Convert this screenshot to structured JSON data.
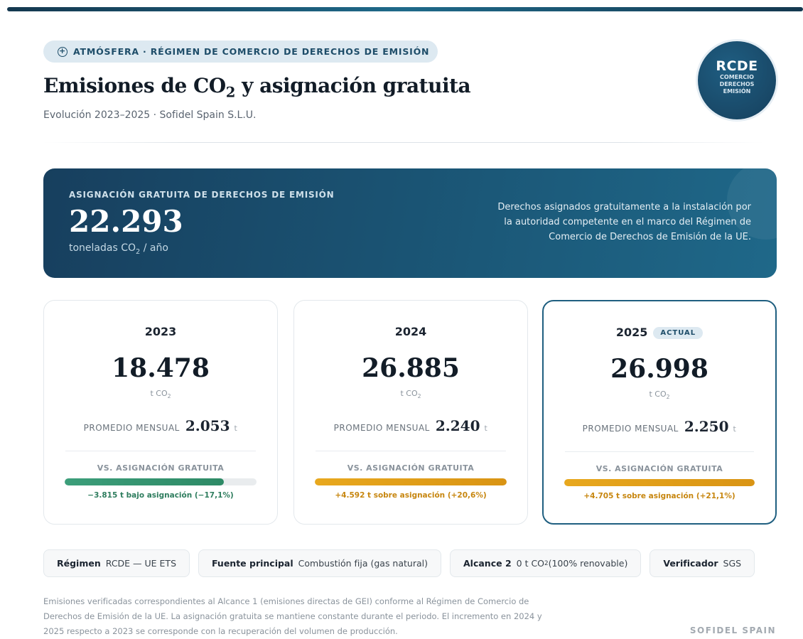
{
  "header": {
    "tag": "ATMÓSFERA · RÉGIMEN DE COMERCIO DE DERECHOS DE EMISIÓN",
    "title_pre": "Emisiones de CO",
    "title_sub": "2",
    "title_post": " y asignación gratuita",
    "subtitle": "Evolución 2023–2025 · Sofidel Spain S.L.U."
  },
  "badge": {
    "abbr": "RCDE",
    "lines": [
      "COMERCIO",
      "DERECHOS",
      "EMISIÓN"
    ]
  },
  "allocation": {
    "label": "ASIGNACIÓN GRATUITA DE DERECHOS DE EMISIÓN",
    "value": "22.293",
    "unit_pre": "toneladas CO",
    "unit_sub": "2",
    "unit_post": " / año",
    "description": "Derechos asignados gratuitamente a la instalación por la autoridad competente en el marco del Régimen de Comercio de Derechos de Emisión de la UE."
  },
  "years": [
    {
      "year": "2023",
      "value": "18.478",
      "unit_pre": "t CO",
      "unit_sub": "2",
      "avg_label": "PROMEDIO MENSUAL",
      "avg": "2.053",
      "avg_unit": "t",
      "vs_label": "VS. ASIGNACIÓN GRATUITA",
      "diff": "−3.815 t bajo asignación (−17,1%)"
    },
    {
      "year": "2024",
      "value": "26.885",
      "unit_pre": "t CO",
      "unit_sub": "2",
      "avg_label": "PROMEDIO MENSUAL",
      "avg": "2.240",
      "avg_unit": "t",
      "vs_label": "VS. ASIGNACIÓN GRATUITA",
      "diff": "+4.592 t sobre asignación (+20,6%)"
    },
    {
      "year": "2025",
      "tag": "ACTUAL",
      "value": "26.998",
      "unit_pre": "t CO",
      "unit_sub": "2",
      "avg_label": "PROMEDIO MENSUAL",
      "avg": "2.250",
      "avg_unit": "t",
      "vs_label": "VS. ASIGNACIÓN GRATUITA",
      "diff": "+4.705 t sobre asignación (+21,1%)"
    }
  ],
  "chips": [
    {
      "label": "Régimen",
      "value": "RCDE — UE ETS"
    },
    {
      "label": "Fuente principal",
      "value": "Combustión fija (gas natural)"
    },
    {
      "label": "Alcance 2",
      "value": "0 t CO",
      "value_sub": "2",
      "value_post": " (100% renovable)"
    },
    {
      "label": "Verificador",
      "value": "SGS"
    }
  ],
  "notes": "Emisiones verificadas correspondientes al Alcance 1 (emisiones directas de GEI) conforme al Régimen de Comercio de Derechos de Emisión de la UE. La asignación gratuita se mantiene constante durante el periodo. El incremento en 2024 y 2025 respecto a 2023 se corresponde con la recuperación del volumen de producción.",
  "brand": "SOFIDEL SPAIN"
}
